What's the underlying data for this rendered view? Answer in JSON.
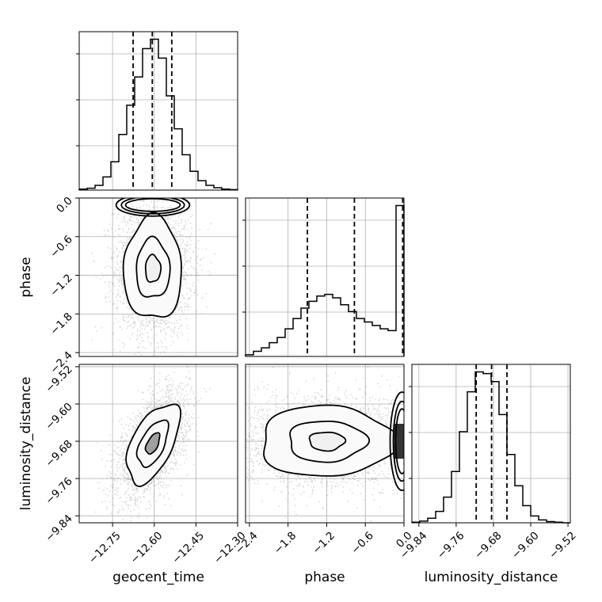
{
  "chart_data": {
    "type": "corner",
    "params": [
      "geocent_time",
      "phase",
      "luminosity_distance"
    ],
    "axes": {
      "geocent_time": {
        "range": [
          -12.87,
          -12.3
        ],
        "ticks": [
          -12.75,
          -12.6,
          -12.45,
          -12.3
        ]
      },
      "phase": {
        "range": [
          -2.46,
          0.0
        ],
        "ticks": [
          -2.4,
          -1.8,
          -1.2,
          -0.6,
          0.0
        ]
      },
      "luminosity_distance": {
        "range": [
          -9.855,
          -9.515
        ],
        "ticks": [
          -9.84,
          -9.76,
          -9.68,
          -9.6,
          -9.52
        ]
      }
    },
    "tick_labels": {
      "geocent_time": [
        "−12.75",
        "−12.60",
        "−12.45",
        "−12.30"
      ],
      "phase": [
        "−2.4",
        "−1.8",
        "−1.2",
        "−0.6",
        "0.0"
      ],
      "luminosity_distance": [
        "−9.84",
        "−9.76",
        "−9.68",
        "−9.60",
        "−9.52"
      ]
    },
    "histograms": [
      {
        "param": "geocent_time",
        "edges": [
          -12.87,
          -12.8415,
          -12.813,
          -12.7845,
          -12.756,
          -12.7275,
          -12.699,
          -12.6705,
          -12.642,
          -12.6135,
          -12.585,
          -12.5565,
          -12.528,
          -12.4995,
          -12.471,
          -12.4425,
          -12.414,
          -12.3855,
          -12.357,
          -12.3285,
          -12.3
        ],
        "counts": [
          2,
          4,
          10,
          28,
          60,
          118,
          180,
          240,
          300,
          320,
          280,
          200,
          130,
          75,
          40,
          20,
          10,
          5,
          2,
          1
        ],
        "quantiles": [
          -12.676,
          -12.607,
          -12.537
        ]
      },
      {
        "param": "phase",
        "edges": [
          -2.46,
          -2.337,
          -2.214,
          -2.091,
          -1.968,
          -1.845,
          -1.722,
          -1.599,
          -1.476,
          -1.353,
          -1.23,
          -1.107,
          -0.984,
          -0.861,
          -0.738,
          -0.615,
          -0.492,
          -0.369,
          -0.246,
          -0.123,
          0.0
        ],
        "counts": [
          2,
          6,
          10,
          16,
          22,
          32,
          44,
          56,
          64,
          70,
          72,
          68,
          60,
          52,
          44,
          40,
          36,
          32,
          30,
          175
        ],
        "quantiles": [
          -1.5,
          -0.77,
          -0.02
        ]
      },
      {
        "param": "luminosity_distance",
        "edges": [
          -9.855,
          -9.838,
          -9.821,
          -9.804,
          -9.787,
          -9.77,
          -9.753,
          -9.736,
          -9.719,
          -9.702,
          -9.685,
          -9.668,
          -9.651,
          -9.634,
          -9.617,
          -9.6,
          -9.583,
          -9.566,
          -9.549,
          -9.532,
          -9.515
        ],
        "counts": [
          1,
          3,
          8,
          20,
          45,
          90,
          160,
          230,
          265,
          262,
          248,
          190,
          120,
          65,
          30,
          12,
          5,
          2,
          1,
          0
        ],
        "quantiles": [
          -9.717,
          -9.684,
          -9.651
        ]
      }
    ],
    "pairs": [
      {
        "x": "geocent_time",
        "y": "phase",
        "center": [
          -12.605,
          -1.1
        ],
        "sigma": [
          0.055,
          0.42
        ],
        "rho": 0.0,
        "ridge": {
          "y": -0.06,
          "sigma_y": 0.035,
          "x_range": [
            -12.68,
            -12.53
          ]
        },
        "contour_scales": [
          0.5,
          1.1,
          1.9
        ]
      },
      {
        "x": "geocent_time",
        "y": "luminosity_distance",
        "center": [
          -12.605,
          -9.685
        ],
        "sigma": [
          0.05,
          0.045
        ],
        "rho": 0.55,
        "contour_scales": [
          0.5,
          1.1,
          1.9
        ]
      },
      {
        "x": "phase",
        "y": "luminosity_distance",
        "center": [
          -1.2,
          -9.68
        ],
        "sigma": [
          0.55,
          0.04
        ],
        "rho": 0.0,
        "ridge": {
          "x": -0.08,
          "sigma_x": 0.06,
          "y_range": [
            -9.76,
            -9.6
          ]
        },
        "contour_scales": [
          0.5,
          1.1,
          1.9
        ]
      }
    ],
    "xlabels": [
      "geocent_time",
      "phase",
      "luminosity_distance"
    ],
    "ylabels": [
      "phase",
      "luminosity_distance"
    ],
    "grid": true
  }
}
